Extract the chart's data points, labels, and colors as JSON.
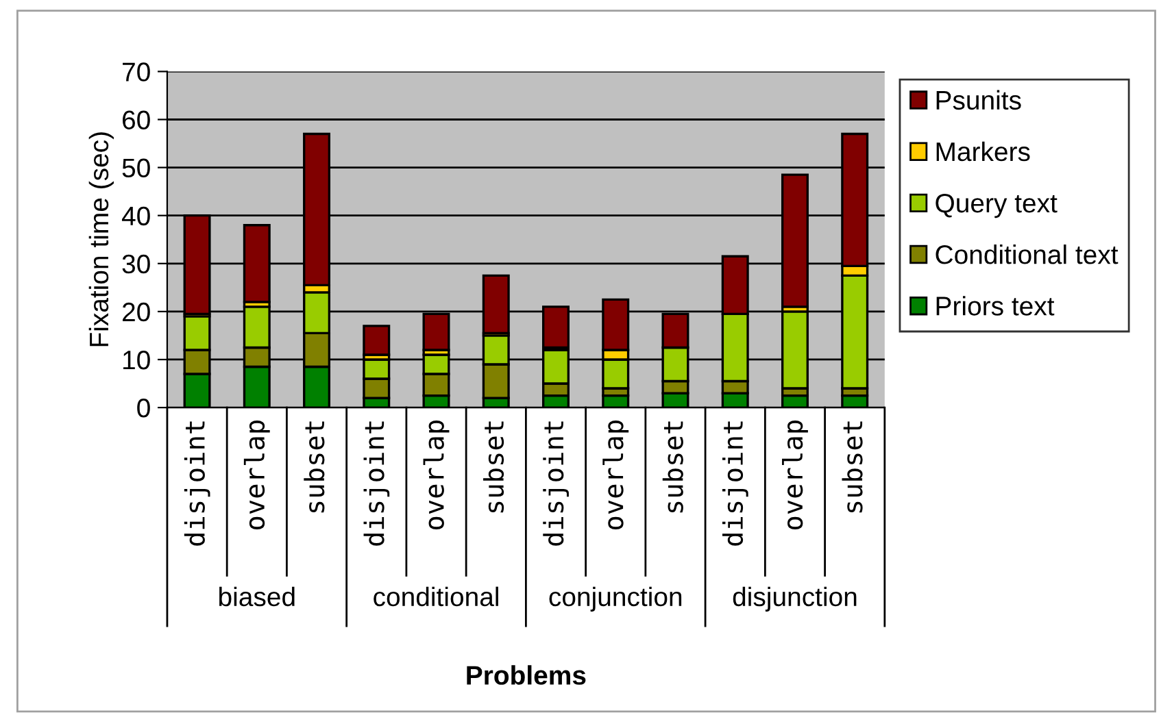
{
  "chart_data": {
    "type": "bar",
    "stacked": true,
    "xlabel": "Problems",
    "ylabel": "Fixation time (sec)",
    "categories": [
      "disjoint",
      "overlap",
      "subset",
      "disjoint",
      "overlap",
      "subset",
      "disjoint",
      "overlap",
      "subset",
      "disjoint",
      "overlap",
      "subset"
    ],
    "annotations": [
      "biased",
      "conditional",
      "conjunction",
      "disjunction"
    ],
    "series": [
      {
        "name": "Priors text",
        "color": "#008000",
        "values": [
          7,
          8.5,
          8.5,
          2,
          2.5,
          2,
          2.5,
          2.5,
          3,
          3,
          2.5,
          2.5
        ]
      },
      {
        "name": "Conditional text",
        "color": "#808000",
        "values": [
          5,
          4,
          7,
          4,
          4.5,
          7,
          2.5,
          1.5,
          2.5,
          2.5,
          1.5,
          1.5
        ]
      },
      {
        "name": "Query text",
        "color": "#99cc00",
        "values": [
          7,
          8.5,
          8.5,
          4,
          4,
          6,
          7,
          6,
          7,
          14,
          16,
          23.5
        ]
      },
      {
        "name": "Markers",
        "color": "#ffcc00",
        "values": [
          0.5,
          1,
          1.5,
          1,
          1,
          0.5,
          0.5,
          2,
          null,
          null,
          1,
          2
        ]
      },
      {
        "name": "Psunits",
        "color": "#800000",
        "values": [
          20.5,
          16,
          31.5,
          6,
          7.5,
          12,
          8.5,
          10.5,
          7,
          12,
          27.5,
          27.5
        ]
      }
    ],
    "ylim": [
      0,
      70
    ],
    "yticks": [
      0,
      10,
      20,
      30,
      40,
      50,
      60,
      70
    ],
    "grid": "y",
    "legend": "right"
  }
}
